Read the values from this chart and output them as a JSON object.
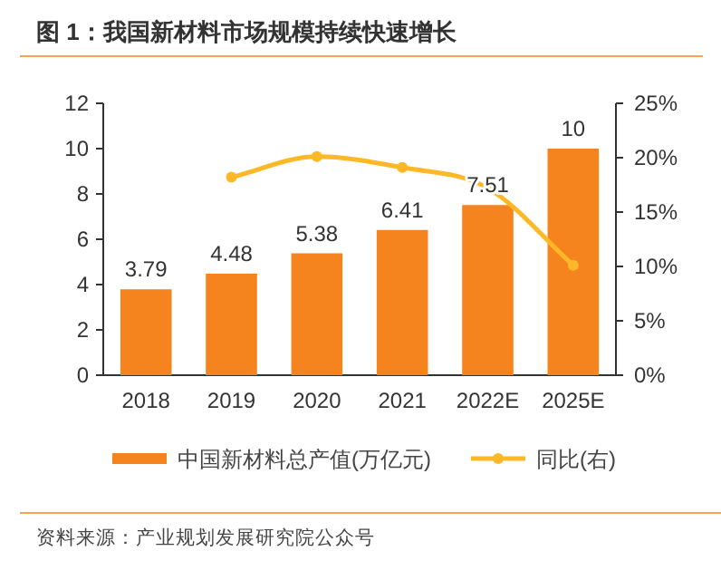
{
  "chart_data": {
    "type": "bar",
    "title": "图 1：我国新材料市场规模持续快速增长",
    "categories": [
      "2018",
      "2019",
      "2020",
      "2021",
      "2022E",
      "2025E"
    ],
    "series": [
      {
        "name": "中国新材料总产值(万亿元)",
        "color": "#f5841f",
        "values": [
          3.79,
          4.48,
          5.38,
          6.41,
          7.51,
          10
        ],
        "value_labels": [
          "3.79",
          "4.48",
          "5.38",
          "6.41",
          "7.51",
          "10"
        ]
      },
      {
        "name": "同比(右)",
        "type": "line",
        "axis": "y2",
        "color": "#fdb827",
        "marker": "circle",
        "values": [
          null,
          18.2,
          20.1,
          19.1,
          17.2,
          10.1
        ]
      }
    ],
    "ylim": [
      0,
      12
    ],
    "yticks": [
      0,
      2,
      4,
      6,
      8,
      10,
      12
    ],
    "y2lim": [
      0,
      25
    ],
    "y2ticks": [
      {
        "value": 0,
        "label": "0%"
      },
      {
        "value": 5,
        "label": "5%"
      },
      {
        "value": 10,
        "label": "10%"
      },
      {
        "value": 15,
        "label": "15%"
      },
      {
        "value": 20,
        "label": "20%"
      },
      {
        "value": 25,
        "label": "25%"
      }
    ],
    "legend": "bottom",
    "grid": false,
    "annotations": [
      "资料来源：产业规划发展研究院公众号"
    ]
  }
}
